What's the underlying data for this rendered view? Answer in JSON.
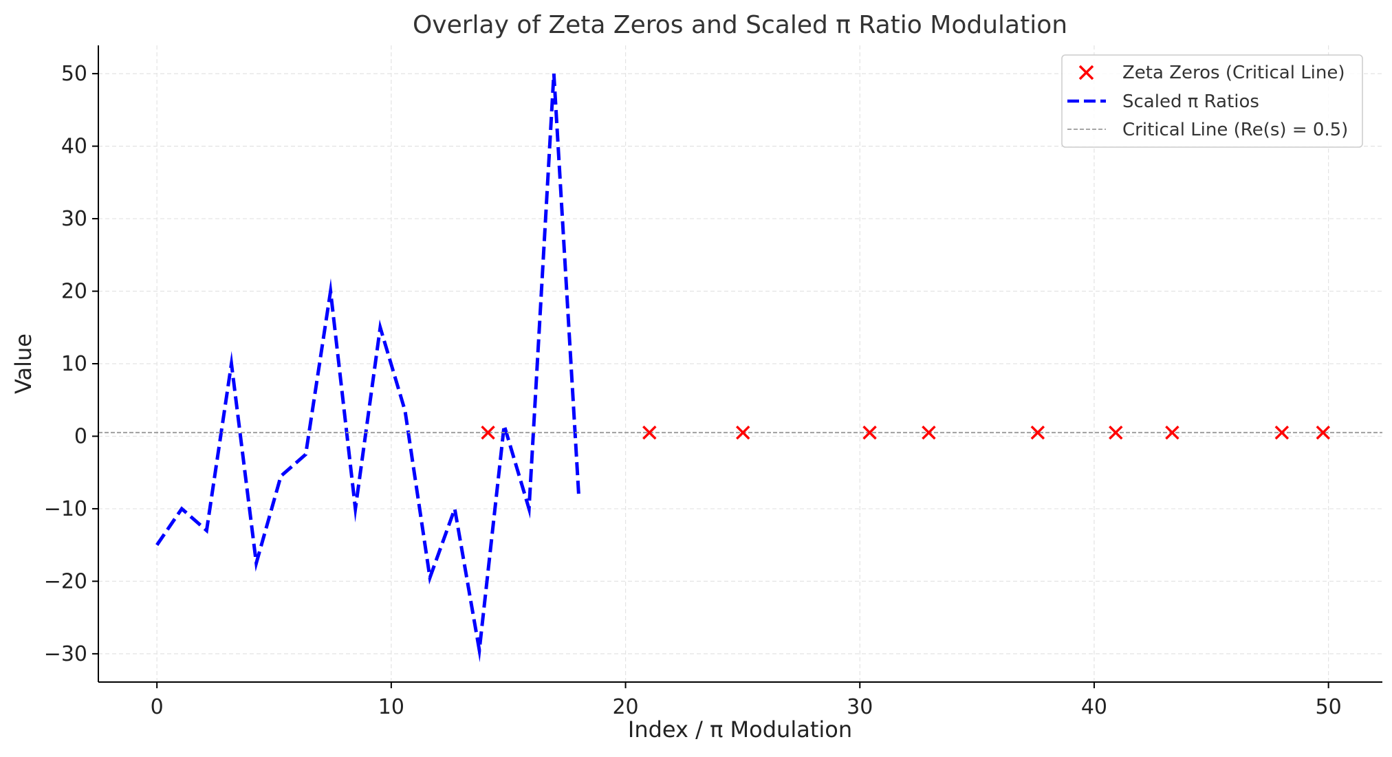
{
  "chart_data": {
    "type": "line",
    "title": "Overlay of Zeta Zeros and Scaled π Ratio Modulation",
    "xlabel": "Index / π Modulation",
    "ylabel": "Value",
    "xlim": [
      -2.5,
      52.3
    ],
    "ylim": [
      -33.9,
      53.9
    ],
    "xticks": [
      0,
      10,
      20,
      30,
      40,
      50
    ],
    "xtick_labels": [
      "0",
      "10",
      "20",
      "30",
      "40",
      "50"
    ],
    "yticks": [
      -30,
      -20,
      -10,
      0,
      10,
      20,
      30,
      40,
      50
    ],
    "ytick_labels": [
      "−30",
      "−20",
      "−10",
      "0",
      "10",
      "20",
      "30",
      "40",
      "50"
    ],
    "grid": true,
    "legend_position": "top-right",
    "series": [
      {
        "name": "Zeta Zeros (Critical Line)",
        "kind": "scatter",
        "marker": "x",
        "color": "#ff0000",
        "x": [
          14.13,
          21.02,
          25.01,
          30.42,
          32.94,
          37.59,
          40.92,
          43.33,
          48.01,
          49.77
        ],
        "y": [
          0.5,
          0.5,
          0.5,
          0.5,
          0.5,
          0.5,
          0.5,
          0.5,
          0.5,
          0.5
        ]
      },
      {
        "name": "Scaled π Ratios",
        "kind": "line",
        "style": "dashed",
        "color": "#0000ff",
        "x": [
          0,
          1.06,
          2.12,
          3.18,
          4.24,
          5.29,
          6.35,
          7.41,
          8.47,
          9.53,
          10.59,
          11.65,
          12.71,
          13.76,
          14.82,
          15.88,
          16.94,
          18.0
        ],
        "y": [
          -15,
          -10,
          -13,
          10,
          -17.5,
          -5.5,
          -2.5,
          20,
          -10,
          15,
          3.5,
          -19.5,
          -10,
          -29.5,
          1.5,
          -10,
          50,
          -8
        ]
      },
      {
        "name": "Critical Line (Re(s) = 0.5)",
        "kind": "hline",
        "style": "dashed",
        "color": "#999999",
        "y": 0.5
      }
    ]
  }
}
